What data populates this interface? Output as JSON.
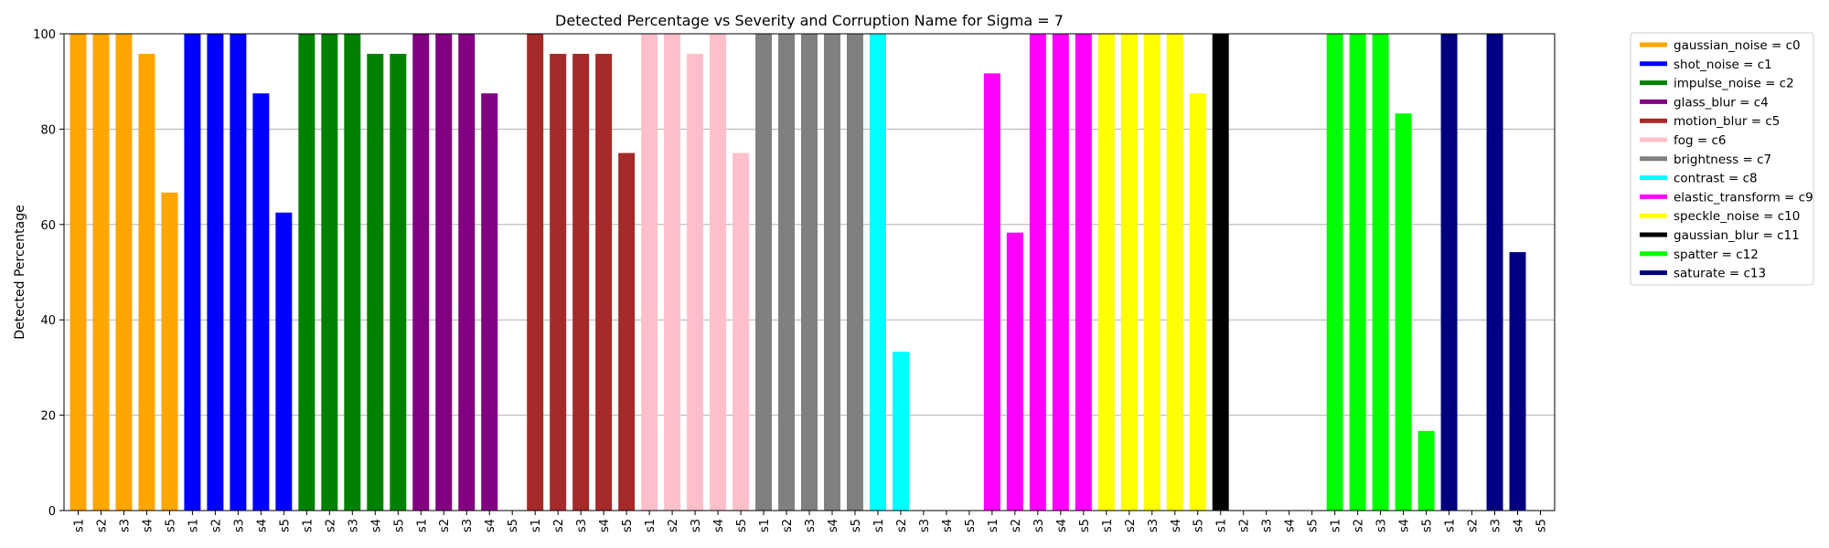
{
  "chart_data": {
    "type": "bar",
    "title": "Detected Percentage vs Severity and Corruption Name for Sigma = 7",
    "xlabel": "",
    "ylabel": "Detected Percentage",
    "ylim": [
      0,
      100
    ],
    "yticks": [
      0,
      20,
      40,
      60,
      80,
      100
    ],
    "grid": "horizontal",
    "legend_position": "outside-right-top",
    "categories": [
      "s1",
      "s2",
      "s3",
      "s4",
      "s5"
    ],
    "series": [
      {
        "name": "gaussian_noise = c0",
        "color": "#ffa500",
        "values": [
          100,
          100,
          100,
          95.8,
          66.7
        ]
      },
      {
        "name": "shot_noise = c1",
        "color": "#0000ff",
        "values": [
          100,
          100,
          100,
          87.5,
          62.5
        ]
      },
      {
        "name": "impulse_noise = c2",
        "color": "#008000",
        "values": [
          100,
          100,
          100,
          95.8,
          95.8
        ]
      },
      {
        "name": "glass_blur = c4",
        "color": "#800080",
        "values": [
          100,
          100,
          100,
          87.5,
          0
        ]
      },
      {
        "name": "motion_blur = c5",
        "color": "#a52a2a",
        "values": [
          100,
          95.8,
          95.8,
          95.8,
          75
        ]
      },
      {
        "name": "fog = c6",
        "color": "#ffc0cb",
        "values": [
          100,
          100,
          95.8,
          100,
          75
        ]
      },
      {
        "name": "brightness = c7",
        "color": "#808080",
        "values": [
          100,
          100,
          100,
          100,
          100
        ]
      },
      {
        "name": "contrast = c8",
        "color": "#00ffff",
        "values": [
          100,
          33.3,
          0,
          0,
          0
        ]
      },
      {
        "name": "elastic_transform = c9",
        "color": "#ff00ff",
        "values": [
          91.7,
          58.3,
          100,
          100,
          100
        ]
      },
      {
        "name": "speckle_noise = c10",
        "color": "#ffff00",
        "values": [
          100,
          100,
          100,
          100,
          87.5
        ]
      },
      {
        "name": "gaussian_blur = c11",
        "color": "#000000",
        "values": [
          100,
          0,
          0,
          0,
          0
        ]
      },
      {
        "name": "spatter = c12",
        "color": "#00ff00",
        "values": [
          100,
          100,
          100,
          83.3,
          16.7
        ]
      },
      {
        "name": "saturate = c13",
        "color": "#000080",
        "values": [
          100,
          0,
          100,
          54.2,
          0
        ]
      }
    ]
  }
}
